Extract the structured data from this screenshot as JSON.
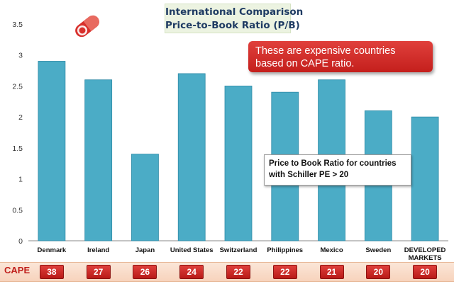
{
  "chart_data": {
    "type": "bar",
    "title_lines": [
      "International Comparison",
      "Price-to-Book Ratio (P/B)"
    ],
    "categories": [
      "Denmark",
      "Ireland",
      "Japan",
      "United States",
      "Switzerland",
      "Philippines",
      "Mexico",
      "Sweden",
      "DEVELOPED MARKETS"
    ],
    "values": [
      2.9,
      2.6,
      1.4,
      2.7,
      2.5,
      2.4,
      2.6,
      2.1,
      2.0
    ],
    "yticks": [
      "0",
      "0.5",
      "1",
      "1.5",
      "2",
      "2.5",
      "3",
      "3.5"
    ],
    "ylim": [
      0,
      3.5
    ],
    "grid": false,
    "colors": {
      "bar": "#4bacc6",
      "bar_edge": "#2f8aa6",
      "callout": "#d8302c",
      "cape_band": "#fbe3d3"
    },
    "callout": "These are expensive countries based on CAPE ratio.",
    "note": "Price to Book Ratio for countries with Schiller PE > 20",
    "cape": {
      "label": "CAPE",
      "values": [
        "38",
        "27",
        "26",
        "24",
        "22",
        "22",
        "21",
        "20",
        "20"
      ]
    }
  },
  "logo_icon": "capsule-logo-icon"
}
